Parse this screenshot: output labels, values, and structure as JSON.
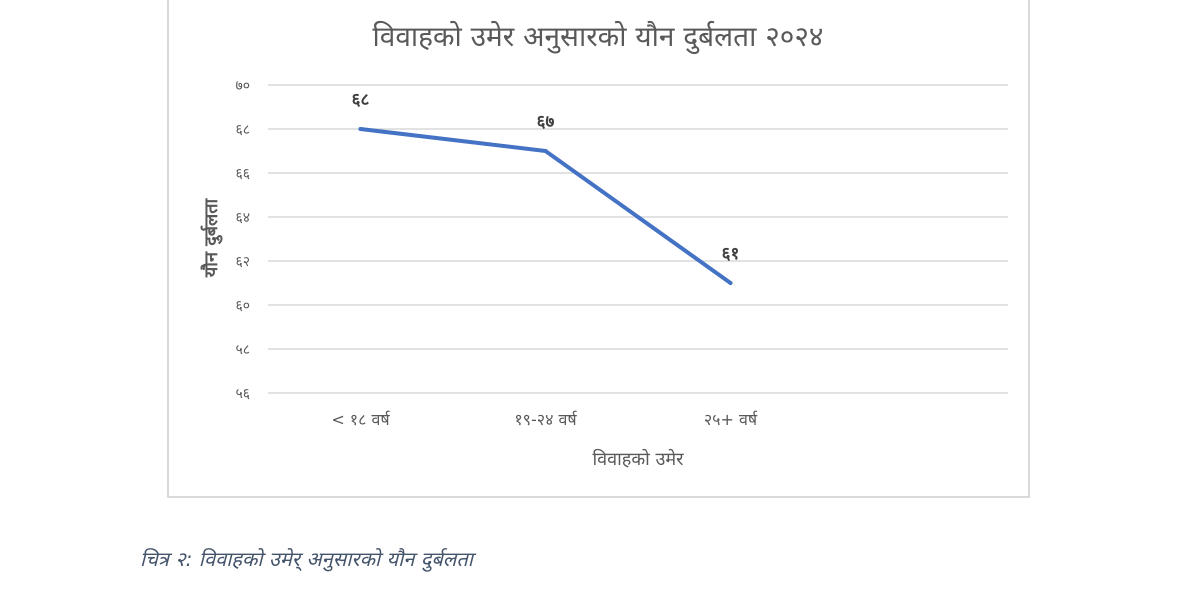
{
  "chart_data": {
    "type": "line",
    "title": "विवाहको उमेर अनुसारको यौन दुर्बलता २०२४",
    "xlabel": "विवाहको उमेर",
    "ylabel": "यौन दुर्बलता",
    "categories": [
      "< १८ वर्ष",
      "१९-२४ वर्ष",
      "२५+ वर्ष"
    ],
    "series": [
      {
        "values": [
          68,
          67,
          61
        ],
        "data_labels": [
          "६८",
          "६७",
          "६१"
        ],
        "color": "#4472c4"
      }
    ],
    "ylim": [
      56,
      70
    ],
    "yticks": [
      56,
      58,
      60,
      62,
      64,
      66,
      68,
      70
    ],
    "ytick_labels": [
      "५६",
      "५८",
      "६०",
      "६२",
      "६४",
      "६६",
      "६८",
      "७०"
    ],
    "grid": true,
    "legend": "none"
  },
  "caption": "चित्र २: विवाहको उमेर् अनुसारको यौन दुर्बलता"
}
